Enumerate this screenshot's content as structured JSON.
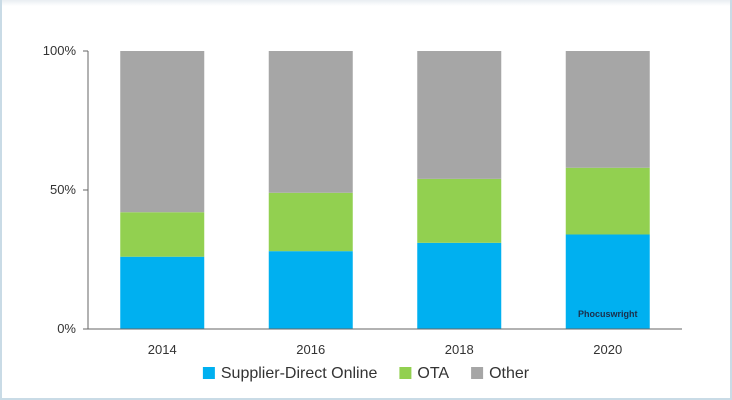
{
  "chart_data": {
    "type": "bar",
    "stacked": true,
    "categories": [
      "2014",
      "2016",
      "2018",
      "2020"
    ],
    "series": [
      {
        "name": "Supplier-Direct Online",
        "color": "#00b0f0",
        "values": [
          26,
          28,
          31,
          34
        ]
      },
      {
        "name": "OTA",
        "color": "#92d050",
        "values": [
          16,
          21,
          23,
          24
        ]
      },
      {
        "name": "Other",
        "color": "#a6a6a6",
        "values": [
          58,
          51,
          46,
          42
        ]
      }
    ],
    "y_ticks": [
      "0%",
      "50%",
      "100%"
    ],
    "ylim": [
      0,
      100
    ],
    "legend_position": "bottom",
    "grid": false
  },
  "watermark": "Phocuswright"
}
